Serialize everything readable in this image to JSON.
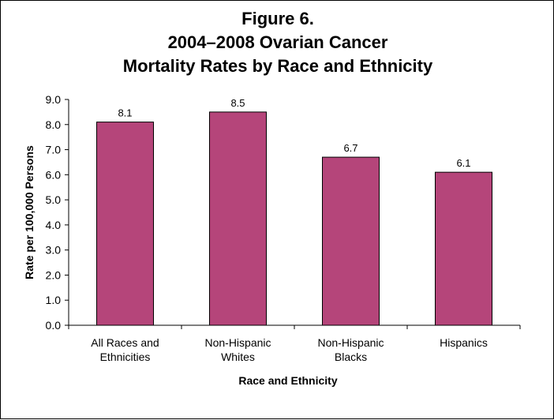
{
  "title_lines": [
    "Figure 6.",
    "2004–2008 Ovarian Cancer",
    "Mortality Rates by Race and Ethnicity"
  ],
  "chart_data": {
    "type": "bar",
    "title": "Figure 6. 2004–2008 Ovarian Cancer Mortality Rates by Race and Ethnicity",
    "categories": [
      [
        "All Races and",
        "Ethnicities"
      ],
      [
        "Non-Hispanic",
        "Whites"
      ],
      [
        "Non-Hispanic",
        "Blacks"
      ],
      [
        "Hispanics"
      ]
    ],
    "values": [
      8.1,
      8.5,
      6.7,
      6.1
    ],
    "value_labels": [
      "8.1",
      "8.5",
      "6.7",
      "6.1"
    ],
    "xlabel": "Race and Ethnicity",
    "ylabel": "Rate per 100,000 Persons",
    "ylim": [
      0,
      9
    ],
    "yticks": [
      "0.0",
      "1.0",
      "2.0",
      "3.0",
      "4.0",
      "5.0",
      "6.0",
      "7.0",
      "8.0",
      "9.0"
    ],
    "grid": false,
    "legend": "none",
    "bar_color": "#B5457A"
  }
}
